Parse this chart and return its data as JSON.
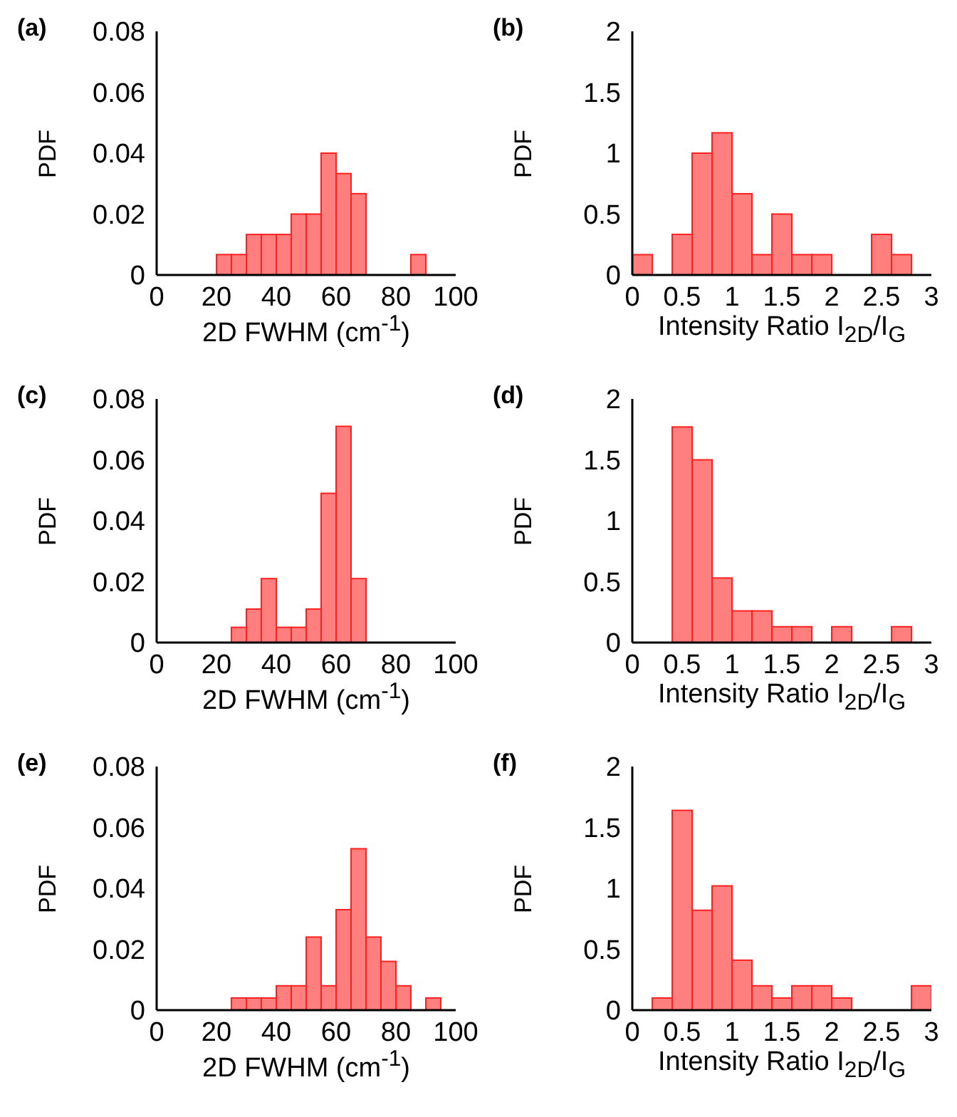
{
  "chart_data": [
    {
      "type": "histogram",
      "title": "(a)",
      "xlabel": "2D FWHM (cm$^{-1}$)",
      "ylabel": "PDF",
      "color": "#ff7f7f",
      "xlim": [
        0,
        100
      ],
      "xticks": [
        0,
        20,
        40,
        60,
        80,
        100
      ],
      "ylim": [
        0,
        0.08
      ],
      "yticks": [
        0,
        0.02,
        0.04,
        0.06,
        0.08
      ],
      "bins": [
        20,
        25,
        30,
        35,
        40,
        45,
        50,
        55,
        60,
        65,
        70,
        75,
        80,
        85,
        90
      ],
      "values": [
        0.0067,
        0.0067,
        0.0133,
        0.0133,
        0.0133,
        0.02,
        0.02,
        0.04,
        0.0333,
        0.0267,
        0,
        0,
        0,
        0.0067
      ]
    },
    {
      "type": "histogram",
      "title": "(b)",
      "xlabel": "Intensity Ratio I$_{2D}$/I$_{G}$",
      "ylabel": "PDF",
      "color": "#ff7f7f",
      "xlim": [
        0,
        3
      ],
      "xticks": [
        0,
        0.5,
        1,
        1.5,
        2,
        2.5,
        3
      ],
      "ylim": [
        0,
        2
      ],
      "yticks": [
        0,
        0.5,
        1,
        1.5,
        2
      ],
      "bins": [
        0,
        0.2,
        0.4,
        0.6,
        0.8,
        1.0,
        1.2,
        1.4,
        1.6,
        1.8,
        2.0,
        2.2,
        2.4,
        2.6,
        2.8
      ],
      "values": [
        0.167,
        0,
        0.333,
        1.0,
        1.167,
        0.667,
        0.167,
        0.5,
        0.167,
        0.167,
        0,
        0,
        0.333,
        0.167
      ]
    },
    {
      "type": "histogram",
      "title": "(c)",
      "xlabel": "2D FWHM (cm$^{-1}$)",
      "ylabel": "PDF",
      "color": "#ff7f7f",
      "xlim": [
        0,
        100
      ],
      "xticks": [
        0,
        20,
        40,
        60,
        80,
        100
      ],
      "ylim": [
        0,
        0.08
      ],
      "yticks": [
        0,
        0.02,
        0.04,
        0.06,
        0.08
      ],
      "bins": [
        25,
        30,
        35,
        40,
        45,
        50,
        55,
        60,
        65,
        70
      ],
      "values": [
        0.005,
        0.011,
        0.021,
        0.005,
        0.005,
        0.011,
        0.049,
        0.071,
        0.021
      ]
    },
    {
      "type": "histogram",
      "title": "(d)",
      "xlabel": "Intensity Ratio I$_{2D}$/I$_{G}$",
      "ylabel": "PDF",
      "color": "#ff7f7f",
      "xlim": [
        0,
        3
      ],
      "xticks": [
        0,
        0.5,
        1,
        1.5,
        2,
        2.5,
        3
      ],
      "ylim": [
        0,
        2
      ],
      "yticks": [
        0,
        0.5,
        1,
        1.5,
        2
      ],
      "bins": [
        0.4,
        0.6,
        0.8,
        1.0,
        1.2,
        1.4,
        1.6,
        1.8,
        2.0,
        2.2,
        2.4,
        2.6,
        2.8
      ],
      "values": [
        1.77,
        1.5,
        0.53,
        0.26,
        0.26,
        0.13,
        0.13,
        0,
        0.13,
        0,
        0,
        0.13
      ]
    },
    {
      "type": "histogram",
      "title": "(e)",
      "xlabel": "2D FWHM (cm$^{-1}$)",
      "ylabel": "PDF",
      "color": "#ff7f7f",
      "xlim": [
        0,
        100
      ],
      "xticks": [
        0,
        20,
        40,
        60,
        80,
        100
      ],
      "ylim": [
        0,
        0.08
      ],
      "yticks": [
        0,
        0.02,
        0.04,
        0.06,
        0.08
      ],
      "bins": [
        25,
        30,
        35,
        40,
        45,
        50,
        55,
        60,
        65,
        70,
        75,
        80,
        85,
        90,
        95
      ],
      "values": [
        0.004,
        0.004,
        0.004,
        0.008,
        0.008,
        0.024,
        0.008,
        0.033,
        0.053,
        0.024,
        0.016,
        0.008,
        0,
        0.004
      ]
    },
    {
      "type": "histogram",
      "title": "(f)",
      "xlabel": "Intensity Ratio I$_{2D}$/I$_{G}$",
      "ylabel": "PDF",
      "color": "#ff7f7f",
      "xlim": [
        0,
        3
      ],
      "xticks": [
        0,
        0.5,
        1,
        1.5,
        2,
        2.5,
        3
      ],
      "ylim": [
        0,
        2
      ],
      "yticks": [
        0,
        0.5,
        1,
        1.5,
        2
      ],
      "bins": [
        0.2,
        0.4,
        0.6,
        0.8,
        1.0,
        1.2,
        1.4,
        1.6,
        1.8,
        2.0,
        2.2,
        2.4,
        2.6,
        2.8,
        3.0
      ],
      "values": [
        0.1,
        1.64,
        0.82,
        1.02,
        0.41,
        0.2,
        0.1,
        0.2,
        0.2,
        0.1,
        0,
        0,
        0,
        0.2
      ]
    }
  ]
}
